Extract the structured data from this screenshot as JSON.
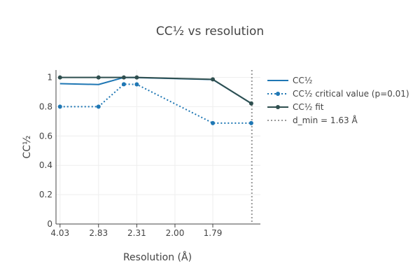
{
  "chart_data": {
    "type": "line",
    "title": "CC½ vs resolution",
    "xlabel": "Resolution (Å)",
    "ylabel": "CC½",
    "x_tick_labels": [
      "4.03",
      "2.83",
      "2.31",
      "2.00",
      "1.79"
    ],
    "x_ticks": [
      0.0616,
      0.1247,
      0.1874,
      0.25,
      0.312
    ],
    "xlim": [
      0.055,
      0.39
    ],
    "ylim": [
      0,
      1.05
    ],
    "y_ticks": [
      0,
      0.2,
      0.4,
      0.6,
      0.8,
      1
    ],
    "y_tick_labels": [
      "0",
      "0.2",
      "0.4",
      "0.6",
      "0.8",
      "1"
    ],
    "grid": true,
    "legend_position": "right",
    "series": [
      {
        "name": "CC½",
        "style": "solid",
        "markers": false,
        "color": "#1f77b4",
        "x": [
          0.0616,
          0.1247,
          0.1662,
          0.1874,
          0.312,
          0.375
        ],
        "y": [
          0.957,
          0.951,
          0.999,
          0.998,
          0.985,
          0.822
        ]
      },
      {
        "name": "CC½ critical value (p=0.01)",
        "style": "dotted",
        "markers": true,
        "color": "#1f77b4",
        "x": [
          0.0616,
          0.1247,
          0.1662,
          0.1874,
          0.312,
          0.375
        ],
        "y": [
          0.8,
          0.8,
          0.953,
          0.952,
          0.688,
          0.688
        ]
      },
      {
        "name": "CC½ fit",
        "style": "solid",
        "markers": true,
        "color": "#2f4f4f",
        "x": [
          0.0616,
          0.1247,
          0.1662,
          0.1874,
          0.312,
          0.375
        ],
        "y": [
          0.999,
          0.999,
          0.999,
          0.999,
          0.986,
          0.822
        ]
      }
    ],
    "vlines": [
      {
        "name": "d_min = 1.63 Å",
        "x": 0.376,
        "style": "dotted",
        "color": "#999999"
      }
    ]
  }
}
